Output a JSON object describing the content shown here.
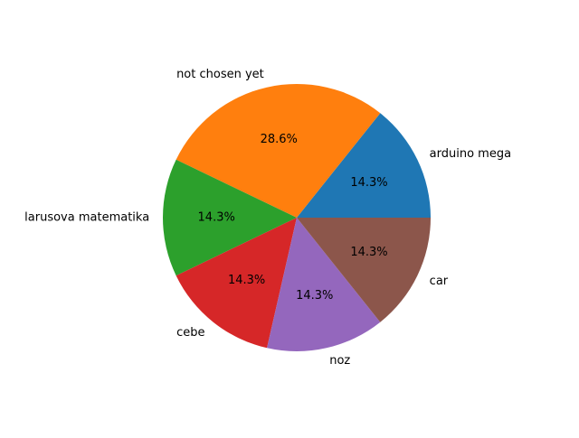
{
  "chart_data": {
    "type": "pie",
    "categories": [
      "arduino mega",
      "not chosen yet",
      "larusova matematika",
      "cebe",
      "noz",
      "car"
    ],
    "values": [
      1,
      2,
      1,
      1,
      1,
      1
    ],
    "percent_labels": [
      "14.3%",
      "28.6%",
      "14.3%",
      "14.3%",
      "14.3%",
      "14.3%"
    ],
    "colors": [
      "#1f77b4",
      "#ff7f0e",
      "#2ca02c",
      "#d62728",
      "#9467bd",
      "#8c564b"
    ],
    "start_angle_deg": 0,
    "direction": "counterclockwise"
  }
}
